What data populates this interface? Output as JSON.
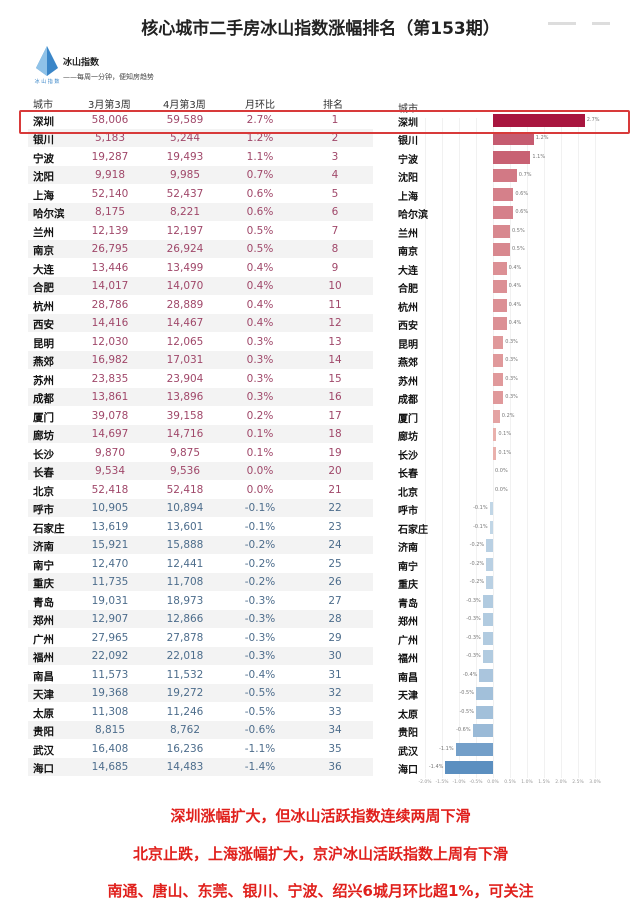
{
  "title": "核心城市二手房冰山指数涨幅排名（第153期）",
  "brand": {
    "name": "冰山指数",
    "slogan": "——每周一分钟，便知房趋势",
    "logo_text": "冰山指数"
  },
  "headers": {
    "city": "城市",
    "prev": "3月第3周",
    "curr": "4月第3周",
    "mom": "月环比",
    "rank": "排名",
    "chart_city": "城市"
  },
  "colors": {
    "highlight": "#d83a3a",
    "positive_max": "#a8163f",
    "positive_min": "#f4c9bd",
    "negative_min": "#c9dbe9",
    "negative_max": "#5b8fc0",
    "notes": "#e0201c"
  },
  "rows": [
    {
      "city": "深圳",
      "prev": "58,006",
      "curr": "59,589",
      "mom": "2.7%",
      "rank": "1"
    },
    {
      "city": "银川",
      "prev": "5,183",
      "curr": "5,244",
      "mom": "1.2%",
      "rank": "2"
    },
    {
      "city": "宁波",
      "prev": "19,287",
      "curr": "19,493",
      "mom": "1.1%",
      "rank": "3"
    },
    {
      "city": "沈阳",
      "prev": "9,918",
      "curr": "9,985",
      "mom": "0.7%",
      "rank": "4"
    },
    {
      "city": "上海",
      "prev": "52,140",
      "curr": "52,437",
      "mom": "0.6%",
      "rank": "5"
    },
    {
      "city": "哈尔滨",
      "prev": "8,175",
      "curr": "8,221",
      "mom": "0.6%",
      "rank": "6"
    },
    {
      "city": "兰州",
      "prev": "12,139",
      "curr": "12,197",
      "mom": "0.5%",
      "rank": "7"
    },
    {
      "city": "南京",
      "prev": "26,795",
      "curr": "26,924",
      "mom": "0.5%",
      "rank": "8"
    },
    {
      "city": "大连",
      "prev": "13,446",
      "curr": "13,499",
      "mom": "0.4%",
      "rank": "9"
    },
    {
      "city": "合肥",
      "prev": "14,017",
      "curr": "14,070",
      "mom": "0.4%",
      "rank": "10"
    },
    {
      "city": "杭州",
      "prev": "28,786",
      "curr": "28,889",
      "mom": "0.4%",
      "rank": "11"
    },
    {
      "city": "西安",
      "prev": "14,416",
      "curr": "14,467",
      "mom": "0.4%",
      "rank": "12"
    },
    {
      "city": "昆明",
      "prev": "12,030",
      "curr": "12,065",
      "mom": "0.3%",
      "rank": "13"
    },
    {
      "city": "燕郊",
      "prev": "16,982",
      "curr": "17,031",
      "mom": "0.3%",
      "rank": "14"
    },
    {
      "city": "苏州",
      "prev": "23,835",
      "curr": "23,904",
      "mom": "0.3%",
      "rank": "15"
    },
    {
      "city": "成都",
      "prev": "13,861",
      "curr": "13,896",
      "mom": "0.3%",
      "rank": "16"
    },
    {
      "city": "厦门",
      "prev": "39,078",
      "curr": "39,158",
      "mom": "0.2%",
      "rank": "17"
    },
    {
      "city": "廊坊",
      "prev": "14,697",
      "curr": "14,716",
      "mom": "0.1%",
      "rank": "18"
    },
    {
      "city": "长沙",
      "prev": "9,870",
      "curr": "9,875",
      "mom": "0.1%",
      "rank": "19"
    },
    {
      "city": "长春",
      "prev": "9,534",
      "curr": "9,536",
      "mom": "0.0%",
      "rank": "20"
    },
    {
      "city": "北京",
      "prev": "52,418",
      "curr": "52,418",
      "mom": "0.0%",
      "rank": "21"
    },
    {
      "city": "呼市",
      "prev": "10,905",
      "curr": "10,894",
      "mom": "-0.1%",
      "rank": "22"
    },
    {
      "city": "石家庄",
      "prev": "13,619",
      "curr": "13,601",
      "mom": "-0.1%",
      "rank": "23"
    },
    {
      "city": "济南",
      "prev": "15,921",
      "curr": "15,888",
      "mom": "-0.2%",
      "rank": "24"
    },
    {
      "city": "南宁",
      "prev": "12,470",
      "curr": "12,441",
      "mom": "-0.2%",
      "rank": "25"
    },
    {
      "city": "重庆",
      "prev": "11,735",
      "curr": "11,708",
      "mom": "-0.2%",
      "rank": "26"
    },
    {
      "city": "青岛",
      "prev": "19,031",
      "curr": "18,973",
      "mom": "-0.3%",
      "rank": "27"
    },
    {
      "city": "郑州",
      "prev": "12,907",
      "curr": "12,866",
      "mom": "-0.3%",
      "rank": "28"
    },
    {
      "city": "广州",
      "prev": "27,965",
      "curr": "27,878",
      "mom": "-0.3%",
      "rank": "29"
    },
    {
      "city": "福州",
      "prev": "22,092",
      "curr": "22,018",
      "mom": "-0.3%",
      "rank": "30"
    },
    {
      "city": "南昌",
      "prev": "11,573",
      "curr": "11,532",
      "mom": "-0.4%",
      "rank": "31"
    },
    {
      "city": "天津",
      "prev": "19,368",
      "curr": "19,272",
      "mom": "-0.5%",
      "rank": "32"
    },
    {
      "city": "太原",
      "prev": "11,308",
      "curr": "11,246",
      "mom": "-0.5%",
      "rank": "33"
    },
    {
      "city": "贵阳",
      "prev": "8,815",
      "curr": "8,762",
      "mom": "-0.6%",
      "rank": "34"
    },
    {
      "city": "武汉",
      "prev": "16,408",
      "curr": "16,236",
      "mom": "-1.1%",
      "rank": "35"
    },
    {
      "city": "海口",
      "prev": "14,685",
      "curr": "14,483",
      "mom": "-1.4%",
      "rank": "36"
    }
  ],
  "chart_data": {
    "type": "bar",
    "orientation": "horizontal",
    "categories": [
      "深圳",
      "银川",
      "宁波",
      "沈阳",
      "上海",
      "哈尔滨",
      "兰州",
      "南京",
      "大连",
      "合肥",
      "杭州",
      "西安",
      "昆明",
      "燕郊",
      "苏州",
      "成都",
      "厦门",
      "廊坊",
      "长沙",
      "长春",
      "北京",
      "呼市",
      "石家庄",
      "济南",
      "南宁",
      "重庆",
      "青岛",
      "郑州",
      "广州",
      "福州",
      "南昌",
      "天津",
      "太原",
      "贵阳",
      "武汉",
      "海口"
    ],
    "values": [
      2.7,
      1.2,
      1.1,
      0.7,
      0.6,
      0.6,
      0.5,
      0.5,
      0.4,
      0.4,
      0.4,
      0.4,
      0.3,
      0.3,
      0.3,
      0.3,
      0.2,
      0.1,
      0.1,
      0.0,
      0.0,
      -0.1,
      -0.1,
      -0.2,
      -0.2,
      -0.2,
      -0.3,
      -0.3,
      -0.3,
      -0.3,
      -0.4,
      -0.5,
      -0.5,
      -0.6,
      -1.1,
      -1.4
    ],
    "data_labels": [
      "2.7%",
      "1.2%",
      "1.1%",
      "0.7%",
      "0.6%",
      "0.6%",
      "0.5%",
      "0.5%",
      "0.4%",
      "0.4%",
      "0.4%",
      "0.4%",
      "0.3%",
      "0.3%",
      "0.3%",
      "0.3%",
      "0.2%",
      "0.1%",
      "0.1%",
      "0.0%",
      "0.0%",
      "-0.1%",
      "-0.1%",
      "-0.2%",
      "-0.2%",
      "-0.2%",
      "-0.3%",
      "-0.3%",
      "-0.3%",
      "-0.3%",
      "-0.4%",
      "-0.5%",
      "-0.5%",
      "-0.6%",
      "-1.1%",
      "-1.4%"
    ],
    "xlim": [
      -2.0,
      3.0
    ],
    "x_ticks": [
      "-2.0%",
      "-1.5%",
      "-1.0%",
      "-0.5%",
      "0.0%",
      "0.5%",
      "1.0%",
      "1.5%",
      "2.0%",
      "2.5%",
      "3.0%"
    ],
    "grid": true
  },
  "notes": [
    "深圳涨幅扩大，但冰山活跃指数连续两周下滑",
    "北京止跌，上海涨幅扩大，京沪冰山活跃指数上周有下滑",
    "南通、唐山、东莞、银川、宁波、绍兴6城月环比超1%，可关注"
  ]
}
